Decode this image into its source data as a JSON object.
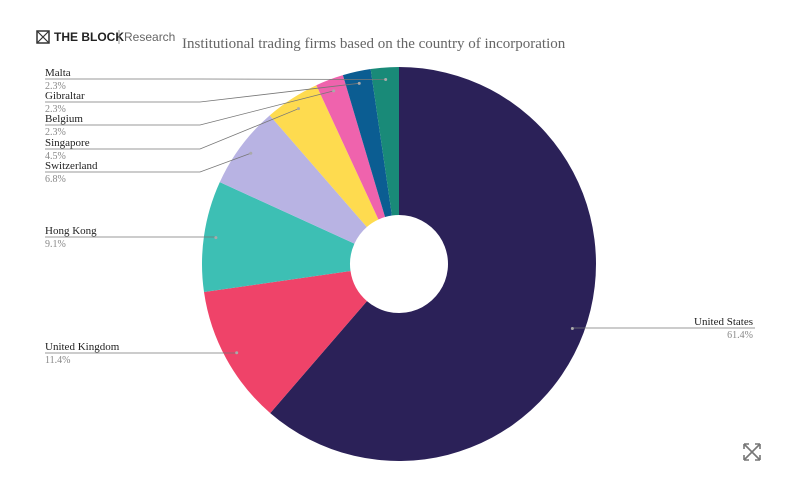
{
  "brand": {
    "name": "THE BLOCK",
    "section": "Research"
  },
  "chart_data": {
    "type": "donut",
    "title": "Institutional trading firms based on the country of incorporation",
    "categories": [
      "United States",
      "United Kingdom",
      "Hong Kong",
      "Switzerland",
      "Singapore",
      "Belgium",
      "Gibraltar",
      "Malta"
    ],
    "values": [
      61.4,
      11.4,
      9.1,
      6.8,
      4.5,
      2.3,
      2.3,
      2.3
    ],
    "value_labels": [
      "61.4%",
      "11.4%",
      "9.1%",
      "6.8%",
      "4.5%",
      "2.3%",
      "2.3%",
      "2.3%"
    ],
    "colors": [
      "#2b2158",
      "#ef4369",
      "#3dbfb4",
      "#b8b3e3",
      "#fedb4f",
      "#ef63ad",
      "#0b5d92",
      "#198a78"
    ]
  }
}
